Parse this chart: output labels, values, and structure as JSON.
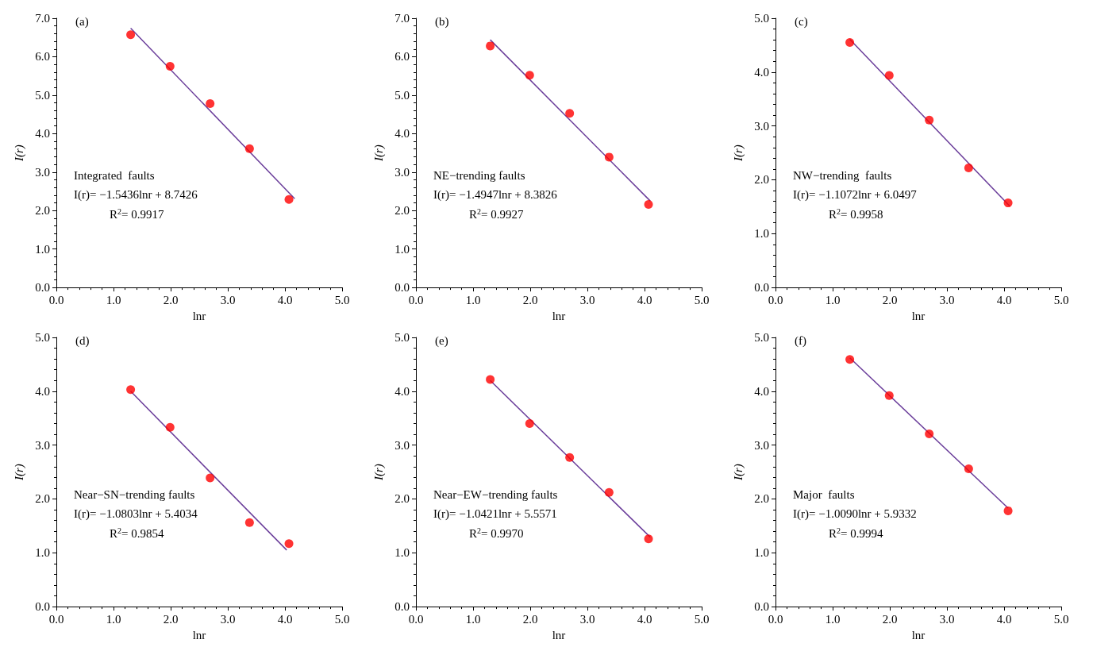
{
  "chart_data": [
    {
      "type": "scatter",
      "title": "(a)",
      "xlabel": "lnr",
      "ylabel": "I(r)",
      "grid": false,
      "xlim": [
        0,
        5
      ],
      "xticks": [
        {
          "value": 0,
          "label": "0.0"
        },
        {
          "value": 1,
          "label": "1.0"
        },
        {
          "value": 2,
          "label": "2.0"
        },
        {
          "value": 3,
          "label": "3.0"
        },
        {
          "value": 4,
          "label": "4.0"
        },
        {
          "value": 5,
          "label": "5.0"
        }
      ],
      "ylim": [
        0,
        7
      ],
      "yticks": [
        {
          "value": 0,
          "label": "0.0"
        },
        {
          "value": 1,
          "label": "1.0"
        },
        {
          "value": 2,
          "label": "2.0"
        },
        {
          "value": 3,
          "label": "3.0"
        },
        {
          "value": 4,
          "label": "4.0"
        },
        {
          "value": 5,
          "label": "5.0"
        },
        {
          "value": 6,
          "label": "6.0"
        },
        {
          "value": 7,
          "label": "7.0"
        }
      ],
      "x": [
        1.3,
        1.99,
        2.69,
        3.38,
        4.07
      ],
      "series": [
        {
          "type": "scatter",
          "marker": "circle",
          "color": "#ff0000",
          "values": [
            6.57,
            5.75,
            4.78,
            3.61,
            2.29
          ]
        },
        {
          "type": "line",
          "marker": "none",
          "line_style": "solid",
          "color": "#6a3d9a",
          "x": [
            1.3,
            4.17
          ],
          "values": [
            6.74,
            2.31
          ]
        }
      ],
      "annotations": [
        "Integrated  faults",
        "I(r)= −1.5436lnr + 8.7426",
        "R$^{2}$= 0.9917"
      ]
    },
    {
      "type": "scatter",
      "title": "(b)",
      "xlabel": "lnr",
      "ylabel": "I(r)",
      "grid": false,
      "xlim": [
        0,
        5
      ],
      "xticks": [
        {
          "value": 0,
          "label": "0.0"
        },
        {
          "value": 1,
          "label": "1.0"
        },
        {
          "value": 2,
          "label": "2.0"
        },
        {
          "value": 3,
          "label": "3.0"
        },
        {
          "value": 4,
          "label": "4.0"
        },
        {
          "value": 5,
          "label": "5.0"
        }
      ],
      "ylim": [
        0,
        7
      ],
      "yticks": [
        {
          "value": 0,
          "label": "0.0"
        },
        {
          "value": 1,
          "label": "1.0"
        },
        {
          "value": 2,
          "label": "2.0"
        },
        {
          "value": 3,
          "label": "3.0"
        },
        {
          "value": 4,
          "label": "4.0"
        },
        {
          "value": 5,
          "label": "5.0"
        },
        {
          "value": 6,
          "label": "6.0"
        },
        {
          "value": 7,
          "label": "7.0"
        }
      ],
      "x": [
        1.3,
        1.99,
        2.69,
        3.38,
        4.07
      ],
      "series": [
        {
          "type": "scatter",
          "marker": "circle",
          "color": "#ff0000",
          "values": [
            6.28,
            5.52,
            4.53,
            3.39,
            2.16
          ]
        },
        {
          "type": "line",
          "marker": "none",
          "line_style": "solid",
          "color": "#6a3d9a",
          "x": [
            1.3,
            4.1
          ],
          "values": [
            6.44,
            2.25
          ]
        }
      ],
      "annotations": [
        "NE−trending faults",
        "I(r)= −1.4947lnr + 8.3826",
        "R$^{2}$= 0.9927"
      ]
    },
    {
      "type": "scatter",
      "title": "(c)",
      "xlabel": "lnr",
      "ylabel": "I(r)",
      "grid": false,
      "xlim": [
        0,
        5
      ],
      "xticks": [
        {
          "value": 0,
          "label": "0.0"
        },
        {
          "value": 1,
          "label": "1.0"
        },
        {
          "value": 2,
          "label": "2.0"
        },
        {
          "value": 3,
          "label": "3.0"
        },
        {
          "value": 4,
          "label": "4.0"
        },
        {
          "value": 5,
          "label": "5.0"
        }
      ],
      "ylim": [
        0,
        5
      ],
      "yticks": [
        {
          "value": 0,
          "label": "0.0"
        },
        {
          "value": 1,
          "label": "1.0"
        },
        {
          "value": 2,
          "label": "2.0"
        },
        {
          "value": 3,
          "label": "3.0"
        },
        {
          "value": 4,
          "label": "4.0"
        },
        {
          "value": 5,
          "label": "5.0"
        }
      ],
      "x": [
        1.3,
        1.99,
        2.69,
        3.38,
        4.07
      ],
      "series": [
        {
          "type": "scatter",
          "marker": "circle",
          "color": "#ff0000",
          "values": [
            4.55,
            3.94,
            3.11,
            2.22,
            1.57
          ]
        },
        {
          "type": "line",
          "marker": "none",
          "line_style": "solid",
          "color": "#6a3d9a",
          "x": [
            1.3,
            4.1
          ],
          "values": [
            4.61,
            1.51
          ]
        }
      ],
      "annotations": [
        "NW−trending  faults",
        "I(r)= −1.1072lnr + 6.0497",
        "R$^{2}$= 0.9958"
      ]
    },
    {
      "type": "scatter",
      "title": "(d)",
      "xlabel": "lnr",
      "ylabel": "I(r)",
      "grid": false,
      "xlim": [
        0,
        5
      ],
      "xticks": [
        {
          "value": 0,
          "label": "0.0"
        },
        {
          "value": 1,
          "label": "1.0"
        },
        {
          "value": 2,
          "label": "2.0"
        },
        {
          "value": 3,
          "label": "3.0"
        },
        {
          "value": 4,
          "label": "4.0"
        },
        {
          "value": 5,
          "label": "5.0"
        }
      ],
      "ylim": [
        0,
        5
      ],
      "yticks": [
        {
          "value": 0,
          "label": "0.0"
        },
        {
          "value": 1,
          "label": "1.0"
        },
        {
          "value": 2,
          "label": "2.0"
        },
        {
          "value": 3,
          "label": "3.0"
        },
        {
          "value": 4,
          "label": "4.0"
        },
        {
          "value": 5,
          "label": "5.0"
        }
      ],
      "x": [
        1.3,
        1.99,
        2.69,
        3.38,
        4.07
      ],
      "series": [
        {
          "type": "scatter",
          "marker": "circle",
          "color": "#ff0000",
          "values": [
            4.03,
            3.33,
            2.39,
            1.56,
            1.17
          ]
        },
        {
          "type": "line",
          "marker": "none",
          "line_style": "solid",
          "color": "#6a3d9a",
          "x": [
            1.3,
            4.03
          ],
          "values": [
            4.0,
            1.05
          ]
        }
      ],
      "annotations": [
        "Near−SN−trending faults",
        "I(r)= −1.0803lnr + 5.4034",
        "R$^{2}$= 0.9854"
      ]
    },
    {
      "type": "scatter",
      "title": "(e)",
      "xlabel": "lnr",
      "ylabel": "I(r)",
      "grid": false,
      "xlim": [
        0,
        5
      ],
      "xticks": [
        {
          "value": 0,
          "label": "0.0"
        },
        {
          "value": 1,
          "label": "1.0"
        },
        {
          "value": 2,
          "label": "2.0"
        },
        {
          "value": 3,
          "label": "3.0"
        },
        {
          "value": 4,
          "label": "4.0"
        },
        {
          "value": 5,
          "label": "5.0"
        }
      ],
      "ylim": [
        0,
        5
      ],
      "yticks": [
        {
          "value": 0,
          "label": "0.0"
        },
        {
          "value": 1,
          "label": "1.0"
        },
        {
          "value": 2,
          "label": "2.0"
        },
        {
          "value": 3,
          "label": "3.0"
        },
        {
          "value": 4,
          "label": "4.0"
        },
        {
          "value": 5,
          "label": "5.0"
        }
      ],
      "x": [
        1.3,
        1.99,
        2.69,
        3.38,
        4.07
      ],
      "series": [
        {
          "type": "scatter",
          "marker": "circle",
          "color": "#ff0000",
          "values": [
            4.22,
            3.4,
            2.77,
            2.12,
            1.26
          ]
        },
        {
          "type": "line",
          "marker": "none",
          "line_style": "solid",
          "color": "#6a3d9a",
          "x": [
            1.3,
            4.1
          ],
          "values": [
            4.2,
            1.29
          ]
        }
      ],
      "annotations": [
        "Near−EW−trending faults",
        "I(r)= −1.0421lnr + 5.5571",
        "R$^{2}$= 0.9970"
      ]
    },
    {
      "type": "scatter",
      "title": "(f)",
      "xlabel": "lnr",
      "ylabel": "I(r)",
      "grid": false,
      "xlim": [
        0,
        5
      ],
      "xticks": [
        {
          "value": 0,
          "label": "0.0"
        },
        {
          "value": 1,
          "label": "1.0"
        },
        {
          "value": 2,
          "label": "2.0"
        },
        {
          "value": 3,
          "label": "3.0"
        },
        {
          "value": 4,
          "label": "4.0"
        },
        {
          "value": 5,
          "label": "5.0"
        }
      ],
      "ylim": [
        0,
        5
      ],
      "yticks": [
        {
          "value": 0,
          "label": "0.0"
        },
        {
          "value": 1,
          "label": "1.0"
        },
        {
          "value": 2,
          "label": "2.0"
        },
        {
          "value": 3,
          "label": "3.0"
        },
        {
          "value": 4,
          "label": "4.0"
        },
        {
          "value": 5,
          "label": "5.0"
        }
      ],
      "x": [
        1.3,
        1.99,
        2.69,
        3.38,
        4.07
      ],
      "series": [
        {
          "type": "scatter",
          "marker": "circle",
          "color": "#ff0000",
          "values": [
            4.59,
            3.92,
            3.21,
            2.56,
            1.78
          ]
        },
        {
          "type": "line",
          "marker": "none",
          "line_style": "solid",
          "color": "#6a3d9a",
          "x": [
            1.3,
            4.07
          ],
          "values": [
            4.62,
            1.83
          ]
        }
      ],
      "annotations": [
        "Major  faults",
        "I(r)= −1.0090lnr + 5.9332",
        "R$^{2}$= 0.9994"
      ]
    }
  ]
}
